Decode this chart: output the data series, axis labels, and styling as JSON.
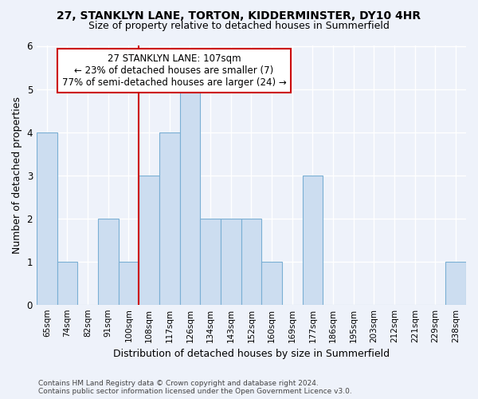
{
  "title1": "27, STANKLYN LANE, TORTON, KIDDERMINSTER, DY10 4HR",
  "title2": "Size of property relative to detached houses in Summerfield",
  "xlabel": "Distribution of detached houses by size in Summerfield",
  "ylabel": "Number of detached properties",
  "categories": [
    "65sqm",
    "74sqm",
    "82sqm",
    "91sqm",
    "100sqm",
    "108sqm",
    "117sqm",
    "126sqm",
    "134sqm",
    "143sqm",
    "152sqm",
    "160sqm",
    "169sqm",
    "177sqm",
    "186sqm",
    "195sqm",
    "203sqm",
    "212sqm",
    "221sqm",
    "229sqm",
    "238sqm"
  ],
  "values": [
    4,
    1,
    0,
    2,
    1,
    3,
    4,
    5,
    2,
    2,
    2,
    1,
    0,
    3,
    0,
    0,
    0,
    0,
    0,
    0,
    1
  ],
  "bar_color": "#ccddf0",
  "bar_edge_color": "#7aafd4",
  "highlight_index": 5,
  "highlight_line_color": "#cc0000",
  "annotation_line1": "27 STANKLYN LANE: 107sqm",
  "annotation_line2": "← 23% of detached houses are smaller (7)",
  "annotation_line3": "77% of semi-detached houses are larger (24) →",
  "annotation_box_color": "#ffffff",
  "annotation_box_edge": "#cc0000",
  "ylim": [
    0,
    6
  ],
  "yticks": [
    0,
    1,
    2,
    3,
    4,
    5,
    6
  ],
  "footer_text": "Contains HM Land Registry data © Crown copyright and database right 2024.\nContains public sector information licensed under the Open Government Licence v3.0.",
  "background_color": "#eef2fa",
  "plot_background": "#eef2fa"
}
